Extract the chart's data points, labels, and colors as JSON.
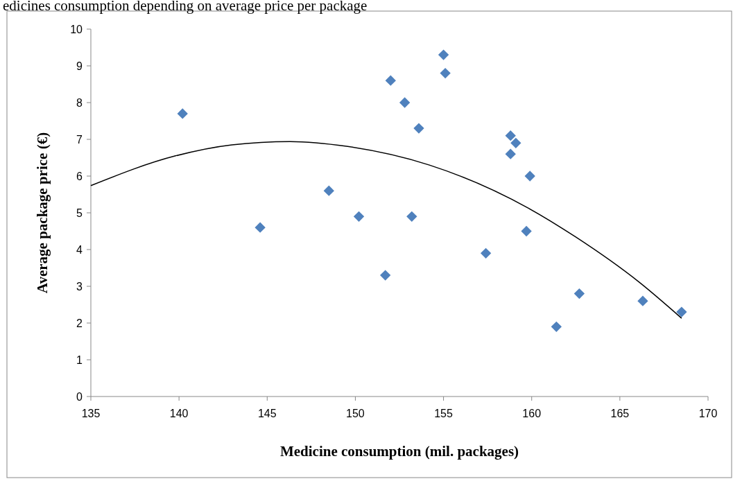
{
  "chart_data": {
    "type": "scatter",
    "title": "edicines consumption depending on average price per package",
    "xlabel": "Medicine consumption (mil. packages)",
    "ylabel": "Average package price (€)",
    "xlim": [
      135,
      170
    ],
    "xticks": [
      135,
      140,
      145,
      150,
      155,
      160,
      165,
      170
    ],
    "ylim": [
      0,
      10
    ],
    "yticks": [
      0,
      1,
      2,
      3,
      4,
      5,
      6,
      7,
      8,
      9,
      10
    ],
    "grid": false,
    "series": [
      {
        "color": "#4f81bd",
        "marker": "diamond",
        "x": [
          140.2,
          144.6,
          148.5,
          150.2,
          151.7,
          152.0,
          152.8,
          153.2,
          153.6,
          155.0,
          155.1,
          157.4,
          158.8,
          158.8,
          159.1,
          159.7,
          159.9,
          161.4,
          162.7,
          166.3,
          168.5
        ],
        "values": [
          7.7,
          4.6,
          5.6,
          4.9,
          3.3,
          8.6,
          8.0,
          4.9,
          7.3,
          9.3,
          8.8,
          3.9,
          7.1,
          6.6,
          6.9,
          4.5,
          6.0,
          1.9,
          2.8,
          2.6,
          2.3
        ]
      },
      {
        "type": "line",
        "color": "#000000",
        "marker": "none",
        "x": [
          135,
          139.8,
          143,
          146.3,
          149.5,
          154.2,
          159.8,
          162.5,
          166.1,
          168.5
        ],
        "values": [
          5.74,
          6.55,
          6.85,
          6.94,
          6.81,
          6.3,
          5.13,
          4.34,
          3.11,
          2.13
        ]
      }
    ]
  }
}
